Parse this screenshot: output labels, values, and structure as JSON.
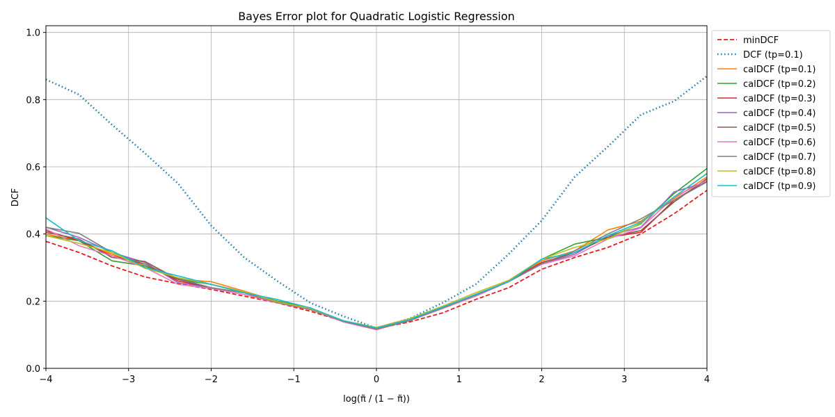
{
  "chart_data": {
    "type": "line",
    "title": "Bayes Error plot for Quadratic Logistic Regression",
    "xlabel": "log(π̃ / (1 − π̃))",
    "ylabel": "DCF",
    "xlim": [
      -4,
      4
    ],
    "ylim": [
      0,
      1.02
    ],
    "xticks": [
      -4,
      -3,
      -2,
      -1,
      0,
      1,
      2,
      3,
      4
    ],
    "xtick_labels": [
      "−4",
      "−3",
      "−2",
      "−1",
      "0",
      "1",
      "2",
      "3",
      "4"
    ],
    "yticks": [
      0,
      0.2,
      0.4,
      0.6,
      0.8,
      1.0
    ],
    "ytick_labels": [
      "0.0",
      "0.2",
      "0.4",
      "0.6",
      "0.8",
      "1.0"
    ],
    "grid": true,
    "legend_position": "outside-right",
    "x": [
      -4,
      -3.6,
      -3.2,
      -2.8,
      -2.4,
      -2,
      -1.6,
      -1.2,
      -0.8,
      -0.4,
      0,
      0.4,
      0.8,
      1.2,
      1.6,
      2,
      2.4,
      2.8,
      3.2,
      3.6,
      4
    ],
    "series": [
      {
        "name": "minDCF",
        "color": "#e41a1c",
        "style": "dashed",
        "values": [
          0.378,
          0.345,
          0.305,
          0.272,
          0.252,
          0.235,
          0.215,
          0.195,
          0.17,
          0.14,
          0.118,
          0.138,
          0.165,
          0.205,
          0.24,
          0.295,
          0.33,
          0.36,
          0.4,
          0.46,
          0.53
        ]
      },
      {
        "name": "DCF (tp=0.1)",
        "color": "#1f77b4",
        "style": "dotted",
        "values": [
          0.86,
          0.815,
          0.725,
          0.64,
          0.55,
          0.425,
          0.33,
          0.26,
          0.195,
          0.155,
          0.12,
          0.148,
          0.195,
          0.25,
          0.34,
          0.44,
          0.57,
          0.66,
          0.755,
          0.795,
          0.87
        ]
      },
      {
        "name": "calDCF (tp=0.1)",
        "color": "#ff7f0e",
        "style": "solid",
        "values": [
          0.4,
          0.38,
          0.34,
          0.305,
          0.265,
          0.258,
          0.23,
          0.2,
          0.18,
          0.14,
          0.12,
          0.145,
          0.18,
          0.22,
          0.258,
          0.32,
          0.35,
          0.412,
          0.438,
          0.505,
          0.57
        ]
      },
      {
        "name": "calDCF (tp=0.2)",
        "color": "#2ca02c",
        "style": "solid",
        "values": [
          0.395,
          0.38,
          0.32,
          0.305,
          0.265,
          0.25,
          0.225,
          0.2,
          0.18,
          0.14,
          0.118,
          0.145,
          0.18,
          0.22,
          0.258,
          0.325,
          0.37,
          0.39,
          0.43,
          0.52,
          0.595
        ]
      },
      {
        "name": "calDCF (tp=0.3)",
        "color": "#d62728",
        "style": "solid",
        "values": [
          0.41,
          0.38,
          0.335,
          0.31,
          0.26,
          0.24,
          0.225,
          0.198,
          0.178,
          0.14,
          0.118,
          0.142,
          0.18,
          0.215,
          0.26,
          0.315,
          0.345,
          0.39,
          0.405,
          0.5,
          0.56
        ]
      },
      {
        "name": "calDCF (tp=0.4)",
        "color": "#9467bd",
        "style": "solid",
        "values": [
          0.42,
          0.39,
          0.345,
          0.315,
          0.255,
          0.24,
          0.225,
          0.195,
          0.175,
          0.14,
          0.116,
          0.142,
          0.18,
          0.215,
          0.258,
          0.31,
          0.34,
          0.395,
          0.42,
          0.525,
          0.555
        ]
      },
      {
        "name": "calDCF (tp=0.5)",
        "color": "#8c564b",
        "style": "solid",
        "values": [
          0.405,
          0.385,
          0.33,
          0.318,
          0.265,
          0.24,
          0.225,
          0.195,
          0.178,
          0.14,
          0.118,
          0.142,
          0.18,
          0.218,
          0.258,
          0.312,
          0.345,
          0.39,
          0.41,
          0.495,
          0.565
        ]
      },
      {
        "name": "calDCF (tp=0.6)",
        "color": "#e377c2",
        "style": "solid",
        "values": [
          0.415,
          0.365,
          0.335,
          0.3,
          0.25,
          0.238,
          0.22,
          0.195,
          0.175,
          0.138,
          0.115,
          0.142,
          0.178,
          0.215,
          0.258,
          0.31,
          0.335,
          0.385,
          0.418,
          0.51,
          0.56
        ]
      },
      {
        "name": "calDCF (tp=0.7)",
        "color": "#7f7f7f",
        "style": "solid",
        "values": [
          0.42,
          0.402,
          0.345,
          0.31,
          0.268,
          0.24,
          0.225,
          0.196,
          0.176,
          0.14,
          0.117,
          0.142,
          0.18,
          0.218,
          0.258,
          0.312,
          0.35,
          0.4,
          0.445,
          0.5,
          0.555
        ]
      },
      {
        "name": "calDCF (tp=0.8)",
        "color": "#bcbd22",
        "style": "solid",
        "values": [
          0.395,
          0.372,
          0.345,
          0.298,
          0.27,
          0.25,
          0.228,
          0.198,
          0.178,
          0.142,
          0.122,
          0.148,
          0.185,
          0.225,
          0.262,
          0.325,
          0.36,
          0.385,
          0.432,
          0.51,
          0.58
        ]
      },
      {
        "name": "calDCF (tp=0.9)",
        "color": "#17becf",
        "style": "solid",
        "values": [
          0.448,
          0.38,
          0.35,
          0.3,
          0.275,
          0.25,
          0.225,
          0.205,
          0.18,
          0.142,
          0.12,
          0.145,
          0.182,
          0.22,
          0.258,
          0.325,
          0.345,
          0.395,
          0.435,
          0.51,
          0.58
        ]
      }
    ]
  }
}
